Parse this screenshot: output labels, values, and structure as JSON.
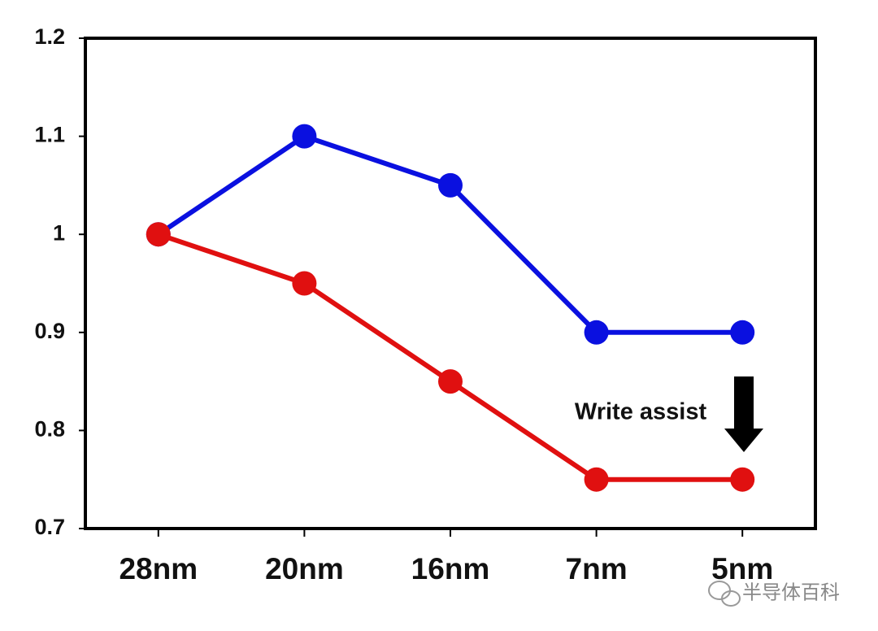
{
  "chart_data": {
    "type": "line",
    "categories": [
      "28nm",
      "20nm",
      "16nm",
      "7nm",
      "5nm"
    ],
    "series": [
      {
        "color": "#0a10e0",
        "values": [
          1,
          1.1,
          1.05,
          0.9,
          0.9
        ]
      },
      {
        "color": "#e01010",
        "values": [
          1,
          0.95,
          0.85,
          0.75,
          0.75
        ]
      }
    ],
    "ylim": [
      0.7,
      1.2
    ],
    "yticks": [
      0.7,
      0.8,
      0.9,
      1,
      1.1,
      1.2
    ],
    "annotation": "Write assist",
    "watermark": "半导体百科"
  }
}
